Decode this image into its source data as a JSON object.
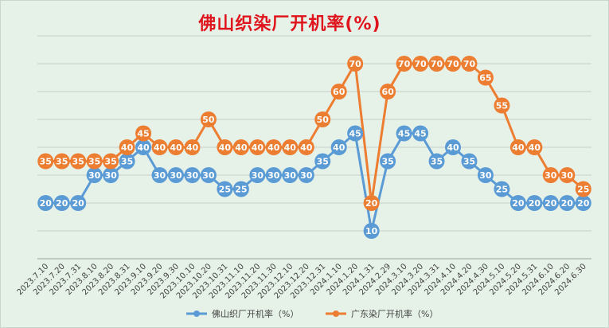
{
  "chart_data": {
    "type": "line",
    "title": "佛山织染厂开机率(%)",
    "categories": [
      "2023.7.10",
      "2023.7.20",
      "2023.7.31",
      "2023.8.10",
      "2023.8.20",
      "2023.8.31",
      "2023.9.10",
      "2023.9.20",
      "2023.9.30",
      "2023.10.10",
      "2023.10.20",
      "2023.10.31",
      "2023.11.10",
      "2023.11.20",
      "2023.11.30",
      "2023.12.10",
      "2023.12.20",
      "2023.12.31",
      "2024.1.10",
      "2024.1.20",
      "2024.1.31",
      "2024.2.29",
      "2024.3.10",
      "2024.3.20",
      "2024.3.31",
      "2024.4.10",
      "2024.4.20",
      "2024.4.30",
      "2024.5.10",
      "2024.5.20",
      "2024.5.31",
      "2024.6.10",
      "2024.6.20",
      "2024.6.30"
    ],
    "series": [
      {
        "name": "佛山织厂开机率（%）",
        "color": "#5b9bd5",
        "values": [
          20,
          20,
          20,
          30,
          30,
          35,
          40,
          30,
          30,
          30,
          30,
          25,
          25,
          30,
          30,
          30,
          30,
          35,
          40,
          45,
          10,
          35,
          45,
          45,
          35,
          40,
          35,
          30,
          25,
          20,
          20,
          20,
          20,
          20
        ]
      },
      {
        "name": "广东染厂开机率（%）",
        "color": "#ed7d31",
        "values": [
          35,
          35,
          35,
          35,
          35,
          40,
          45,
          40,
          40,
          40,
          50,
          40,
          40,
          40,
          40,
          40,
          40,
          50,
          60,
          70,
          20,
          60,
          70,
          70,
          70,
          70,
          70,
          65,
          55,
          40,
          40,
          30,
          30,
          25
        ]
      }
    ],
    "ylim": [
      0,
      80
    ],
    "grid": true,
    "legend": "bottom"
  }
}
